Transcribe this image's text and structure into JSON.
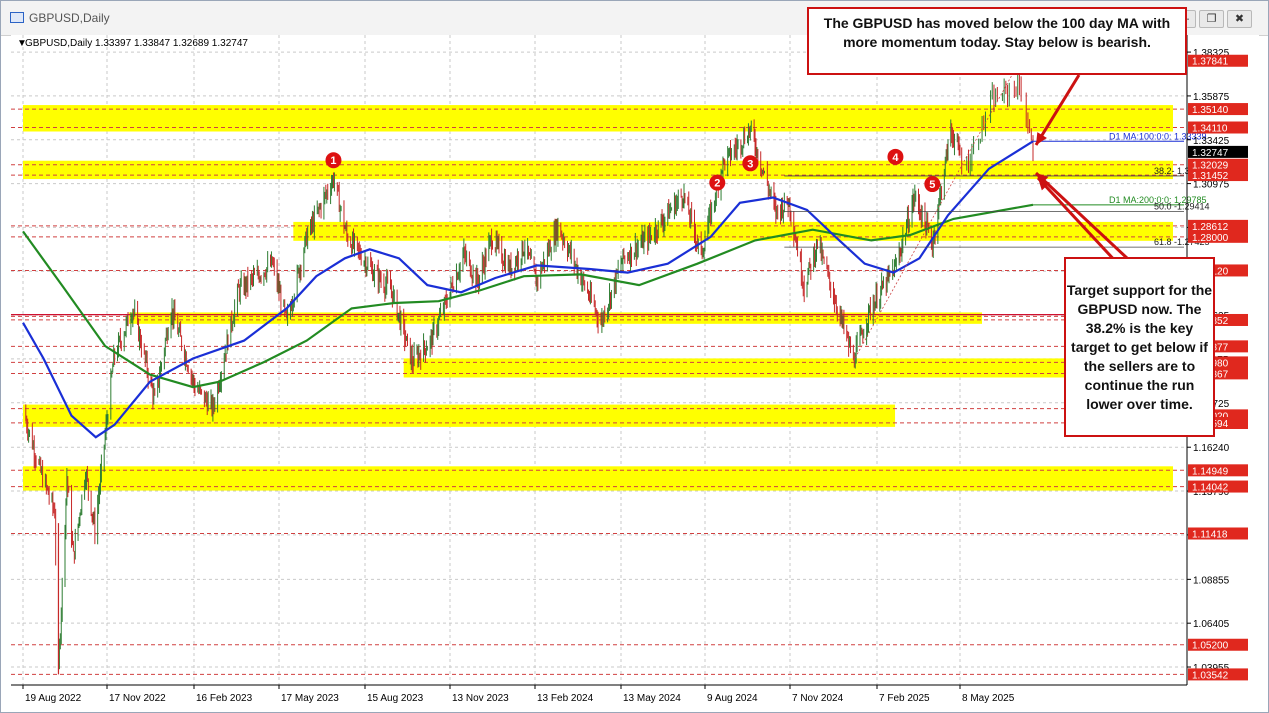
{
  "window": {
    "title": "GBPUSD,Daily",
    "buttons": {
      "minimize": "—",
      "restore": "❐",
      "close": "✖"
    }
  },
  "colors": {
    "bull": "#2e7d32",
    "bear": "#c62828",
    "ma100": "#1a2fd6",
    "ma200": "#228b22",
    "zone": "#ffff00",
    "annotation_border": "#cc1111",
    "marker": "#dd1111"
  },
  "chart_data": {
    "type": "candlestick",
    "symbol_header": "GBPUSD,Daily  1.33397 1.33847 1.32689 1.32747",
    "ylim": [
      1.0295,
      1.3928
    ],
    "x_ticks": [
      {
        "label": "19 Aug 2022",
        "date": "2022-08-19"
      },
      {
        "label": "17 Nov 2022",
        "date": "2022-11-17"
      },
      {
        "label": "16 Feb 2023",
        "date": "2023-02-16"
      },
      {
        "label": "17 May 2023",
        "date": "2023-05-17"
      },
      {
        "label": "15 Aug 2023",
        "date": "2023-08-15"
      },
      {
        "label": "13 Nov 2023",
        "date": "2023-11-13"
      },
      {
        "label": "13 Feb 2024",
        "date": "2024-02-13"
      },
      {
        "label": "13 May 2024",
        "date": "2024-05-13"
      },
      {
        "label": "9 Aug 2024",
        "date": "2024-08-09"
      },
      {
        "label": "7 Nov 2024",
        "date": "2024-11-07"
      },
      {
        "label": "7 Feb 2025",
        "date": "2025-02-07"
      },
      {
        "label": "8 May 2025",
        "date": "2025-05-08"
      }
    ],
    "last_date": "2025-06-20",
    "y_ticks": [
      "1.38325",
      "1.35875",
      "1.33425",
      "1.30975",
      "1.28525",
      "1.26075",
      "1.23625",
      "1.21175",
      "1.18725",
      "1.16240",
      "1.13790",
      "1.11340",
      "1.08855",
      "1.06405",
      "1.03955"
    ],
    "price_path": [
      [
        "2022-08-19",
        1.183
      ],
      [
        "2022-09-06",
        1.15
      ],
      [
        "2022-09-22",
        1.126
      ],
      [
        "2022-09-26",
        1.037
      ],
      [
        "2022-10-05",
        1.146
      ],
      [
        "2022-10-12",
        1.101
      ],
      [
        "2022-10-25",
        1.149
      ],
      [
        "2022-11-04",
        1.116
      ],
      [
        "2022-11-24",
        1.212
      ],
      [
        "2022-12-14",
        1.24
      ],
      [
        "2023-01-06",
        1.188
      ],
      [
        "2023-01-23",
        1.24
      ],
      [
        "2023-02-17",
        1.196
      ],
      [
        "2023-03-08",
        1.184
      ],
      [
        "2023-04-04",
        1.25
      ],
      [
        "2023-05-10",
        1.265
      ],
      [
        "2023-05-25",
        1.232
      ],
      [
        "2023-06-15",
        1.28
      ],
      [
        "2023-07-13",
        1.313
      ],
      [
        "2023-07-27",
        1.28
      ],
      [
        "2023-08-24",
        1.26
      ],
      [
        "2023-09-12",
        1.25
      ],
      [
        "2023-10-04",
        1.21
      ],
      [
        "2023-10-24",
        1.222
      ],
      [
        "2023-11-28",
        1.27
      ],
      [
        "2023-12-13",
        1.255
      ],
      [
        "2023-12-28",
        1.279
      ],
      [
        "2024-01-17",
        1.262
      ],
      [
        "2024-02-02",
        1.275
      ],
      [
        "2024-02-14",
        1.255
      ],
      [
        "2024-03-08",
        1.286
      ],
      [
        "2024-04-22",
        1.232
      ],
      [
        "2024-05-15",
        1.268
      ],
      [
        "2024-06-12",
        1.28
      ],
      [
        "2024-07-17",
        1.304
      ],
      [
        "2024-08-05",
        1.27
      ],
      [
        "2024-08-27",
        1.32
      ],
      [
        "2024-09-26",
        1.34
      ],
      [
        "2024-10-23",
        1.294
      ],
      [
        "2024-11-06",
        1.3
      ],
      [
        "2024-11-22",
        1.252
      ],
      [
        "2024-12-06",
        1.277
      ],
      [
        "2025-01-13",
        1.211
      ],
      [
        "2025-01-31",
        1.24
      ],
      [
        "2025-02-27",
        1.263
      ],
      [
        "2025-03-20",
        1.303
      ],
      [
        "2025-04-08",
        1.276
      ],
      [
        "2025-04-28",
        1.34
      ],
      [
        "2025-05-12",
        1.32
      ],
      [
        "2025-05-27",
        1.356
      ],
      [
        "2025-06-12",
        1.365
      ],
      [
        "2025-06-20",
        1.3275
      ]
    ],
    "ma100_path": [
      [
        "2022-08-19",
        1.232
      ],
      [
        "2022-09-10",
        1.212
      ],
      [
        "2022-10-10",
        1.18
      ],
      [
        "2022-11-05",
        1.168
      ],
      [
        "2022-11-25",
        1.175
      ],
      [
        "2023-01-01",
        1.199
      ],
      [
        "2023-02-15",
        1.212
      ],
      [
        "2023-04-10",
        1.222
      ],
      [
        "2023-05-25",
        1.24
      ],
      [
        "2023-06-25",
        1.258
      ],
      [
        "2023-07-25",
        1.268
      ],
      [
        "2023-08-20",
        1.273
      ],
      [
        "2023-09-20",
        1.268
      ],
      [
        "2023-10-20",
        1.253
      ],
      [
        "2023-11-25",
        1.249
      ],
      [
        "2024-01-01",
        1.257
      ],
      [
        "2024-02-15",
        1.264
      ],
      [
        "2024-04-10",
        1.262
      ],
      [
        "2024-05-20",
        1.26
      ],
      [
        "2024-07-01",
        1.265
      ],
      [
        "2024-08-15",
        1.28
      ],
      [
        "2024-09-15",
        1.299
      ],
      [
        "2024-10-20",
        1.302
      ],
      [
        "2024-11-25",
        1.295
      ],
      [
        "2024-12-25",
        1.28
      ],
      [
        "2025-01-25",
        1.265
      ],
      [
        "2025-02-25",
        1.26
      ],
      [
        "2025-03-25",
        1.268
      ],
      [
        "2025-04-25",
        1.292
      ],
      [
        "2025-05-25",
        1.318
      ],
      [
        "2025-06-20",
        1.3334
      ]
    ],
    "ma200_path": [
      [
        "2022-08-19",
        1.283
      ],
      [
        "2022-10-01",
        1.252
      ],
      [
        "2022-11-15",
        1.219
      ],
      [
        "2023-01-01",
        1.203
      ],
      [
        "2023-02-15",
        1.196
      ],
      [
        "2023-03-15",
        1.199
      ],
      [
        "2023-05-01",
        1.21
      ],
      [
        "2023-06-15",
        1.222
      ],
      [
        "2023-08-01",
        1.24
      ],
      [
        "2023-09-15",
        1.243
      ],
      [
        "2023-11-01",
        1.244
      ],
      [
        "2023-12-15",
        1.25
      ],
      [
        "2024-02-01",
        1.258
      ],
      [
        "2024-04-01",
        1.259
      ],
      [
        "2024-06-01",
        1.253
      ],
      [
        "2024-08-01",
        1.265
      ],
      [
        "2024-10-01",
        1.278
      ],
      [
        "2024-12-01",
        1.284
      ],
      [
        "2025-02-01",
        1.278
      ],
      [
        "2025-03-15",
        1.281
      ],
      [
        "2025-05-01",
        1.29
      ],
      [
        "2025-06-20",
        1.2979
      ]
    ],
    "zones": [
      {
        "from": 1.3411,
        "to": 1.3514,
        "start": "2022-08-19",
        "end": "2025-06-20"
      },
      {
        "from": 1.3145,
        "to": 1.3203,
        "start": "2022-08-19",
        "end": "2025-06-20"
      },
      {
        "from": 1.28,
        "to": 1.2861,
        "start": "2023-06-01",
        "end": "2025-06-20"
      },
      {
        "from": 1.2336,
        "to": 1.2355,
        "start": "2022-12-10",
        "end": "2025-01-01"
      },
      {
        "from": 1.2036,
        "to": 1.2098,
        "start": "2023-09-25",
        "end": "2025-06-20"
      },
      {
        "from": 1.176,
        "to": 1.184,
        "start": "2022-08-19",
        "end": "2024-10-01"
      },
      {
        "from": 1.1404,
        "to": 1.1495,
        "start": "2022-08-19",
        "end": "2025-06-20"
      }
    ],
    "level_labels": [
      {
        "text": "1.37841",
        "value": 1.37841
      },
      {
        "text": "1.35140",
        "value": 1.3514
      },
      {
        "text": "1.34110",
        "value": 1.3411
      },
      {
        "text": "1.32747",
        "value": 1.32747,
        "current": true
      },
      {
        "text": "1.32029",
        "value": 1.32029
      },
      {
        "text": "1.31452",
        "value": 1.31452
      },
      {
        "text": "1.28612",
        "value": 1.28612
      },
      {
        "text": "1.28000",
        "value": 1.28
      },
      {
        "text": "1.26120",
        "value": 1.2612
      },
      {
        "text": "1.23352",
        "value": 1.23352
      },
      {
        "text": "1.21877",
        "value": 1.21877
      },
      {
        "text": "1.20980",
        "value": 1.2098
      },
      {
        "text": "1.20367",
        "value": 1.20367
      },
      {
        "text": "1.18020",
        "value": 1.1802
      },
      {
        "text": "1.17594",
        "value": 1.17594
      },
      {
        "text": "1.14949",
        "value": 1.14949
      },
      {
        "text": "1.14042",
        "value": 1.14042
      },
      {
        "text": "1.11418",
        "value": 1.11418
      },
      {
        "text": "1.05200",
        "value": 1.052
      },
      {
        "text": "1.03542",
        "value": 1.03542
      }
    ],
    "fib_lines": [
      {
        "label": "38.2- 1.31403",
        "value": 1.31403
      },
      {
        "label": "50.0 -1.29414",
        "value": 1.29414
      },
      {
        "label": "61.8 -1.27425",
        "value": 1.27425
      }
    ],
    "ma_labels": [
      {
        "label": "D1 MA:100:0:0: 1.33339",
        "value": 1.33339,
        "series": "ma100"
      },
      {
        "label": "D1 MA:200:0:0: 1.29785",
        "value": 1.29785,
        "series": "ma200"
      }
    ],
    "swing_markers": [
      {
        "label": "1",
        "date": "2023-07-13",
        "value": 1.3228
      },
      {
        "label": "2",
        "date": "2024-08-22",
        "value": 1.3103
      },
      {
        "label": "3",
        "date": "2024-09-26",
        "value": 1.3211
      },
      {
        "label": "4",
        "date": "2025-02-27",
        "value": 1.3247
      },
      {
        "label": "5",
        "date": "2025-04-08",
        "value": 1.3095
      }
    ]
  },
  "annotations": {
    "top": "The GBPUSD has moved below the 100 day MA with more momentum today. Stay below is bearish.",
    "right": "Target support for the GBPUSD now. The 38.2% is the key target to get below if the sellers are to continue the run lower over time."
  }
}
